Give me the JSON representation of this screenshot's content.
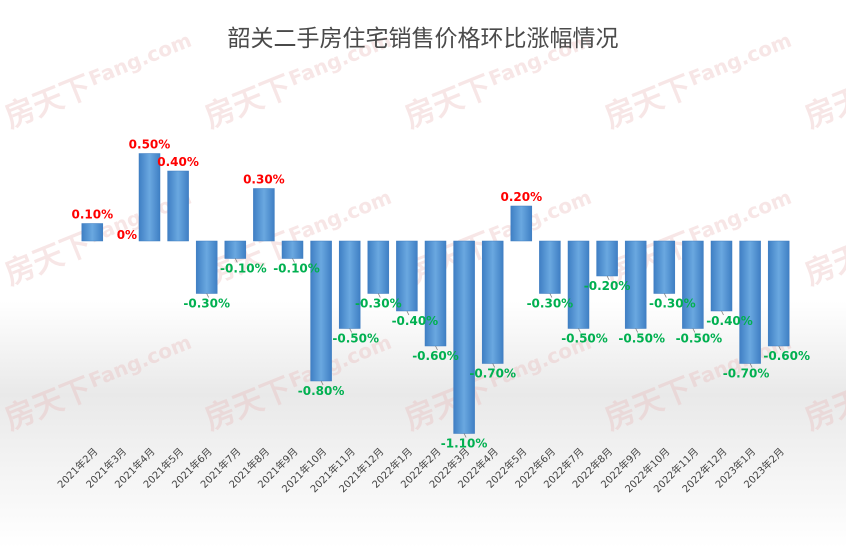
{
  "chart_data": {
    "type": "bar",
    "title": "韶关二手房住宅销售价格环比涨幅情况",
    "xlabel": "",
    "ylabel": "",
    "ylim": [
      -1.1,
      0.5
    ],
    "grid": false,
    "legend": "none",
    "categories": [
      "2021年2月",
      "2021年3月",
      "2021年4月",
      "2021年5月",
      "2021年6月",
      "2021年7月",
      "2021年8月",
      "2021年9月",
      "2021年10月",
      "2021年11月",
      "2021年12月",
      "2022年1月",
      "2022年2月",
      "2022年3月",
      "2022年4月",
      "2022年5月",
      "2022年6月",
      "2022年7月",
      "2022年8月",
      "2022年9月",
      "2022年10月",
      "2022年11月",
      "2022年12月",
      "2023年1月",
      "2023年2月"
    ],
    "values": [
      0.1,
      0.0,
      0.5,
      0.4,
      -0.3,
      -0.1,
      0.3,
      -0.1,
      -0.8,
      -0.5,
      -0.3,
      -0.4,
      -0.6,
      -1.1,
      -0.7,
      0.2,
      -0.3,
      -0.5,
      -0.2,
      -0.5,
      -0.3,
      -0.5,
      -0.4,
      -0.7,
      -0.6
    ],
    "data_labels": [
      "0.10%",
      "0%",
      "0.50%",
      "0.40%",
      "-0.30%",
      "-0.10%",
      "0.30%",
      "-0.10%",
      "-0.80%",
      "-0.50%",
      "-0.30%",
      "-0.40%",
      "-0.60%",
      "-1.10%",
      "-0.70%",
      "0.20%",
      "-0.30%",
      "-0.50%",
      "-0.20%",
      "-0.50%",
      "-0.30%",
      "-0.50%",
      "-0.40%",
      "-0.70%",
      "-0.60%"
    ]
  },
  "watermark": {
    "text": "房天下",
    "text_en": "Fang.com"
  },
  "colors": {
    "bar": "#5b9bd5",
    "bar_dark": "#3e7cc0",
    "positive_label": "#ff0000",
    "negative_label": "#00b050",
    "title": "#4a4a4a"
  }
}
